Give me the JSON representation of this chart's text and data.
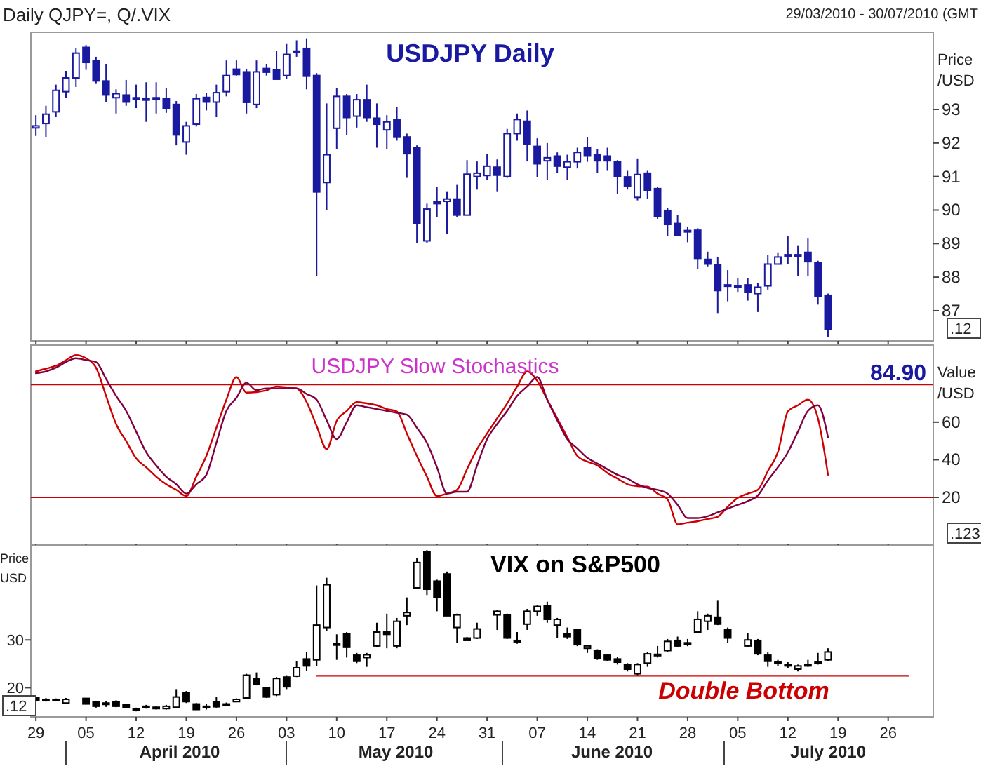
{
  "chart_data": [
    {
      "type": "candlestick",
      "title": "USDJPY Daily",
      "ylabel": "Price /USD",
      "color": "#1a1aa0",
      "tick_labels": "y",
      "annotations": [
        "Daily QJPY=, Q/.VIX",
        "29/03/2010 - 30/07/2010 (GMT",
        ".12"
      ],
      "ylim": [
        86.1,
        95.3
      ],
      "yticks": [
        87,
        88,
        89,
        90,
        91,
        92,
        93
      ],
      "categories": [
        "29",
        null,
        null,
        null,
        null,
        "05",
        null,
        null,
        null,
        null,
        "12",
        null,
        null,
        null,
        null,
        "19",
        null,
        null,
        null,
        null,
        "26",
        null,
        null,
        null,
        null,
        "03",
        null,
        null,
        null,
        null,
        "10",
        null,
        null,
        null,
        null,
        "17",
        null,
        null,
        null,
        null,
        "24",
        null,
        null,
        null,
        null,
        "31",
        null,
        null,
        null,
        null,
        "07",
        null,
        null,
        null,
        null,
        "14",
        null,
        null,
        null,
        null,
        "21",
        null,
        null,
        null,
        null,
        "28",
        null,
        null,
        null,
        null,
        "05",
        null,
        null,
        null,
        null,
        "12",
        null,
        null,
        null,
        null,
        "19",
        null,
        null,
        null,
        null,
        "26",
        null,
        null,
        null,
        null
      ],
      "ohlc": [
        [
          92.45,
          92.83,
          92.21,
          92.51
        ],
        [
          92.58,
          93.11,
          92.18,
          92.86
        ],
        [
          92.93,
          93.74,
          92.77,
          93.57
        ],
        [
          93.53,
          94.15,
          93.35,
          93.94
        ],
        [
          93.94,
          94.82,
          93.67,
          94.68
        ],
        [
          94.85,
          94.92,
          94.18,
          94.4
        ],
        [
          94.46,
          94.57,
          93.76,
          93.85
        ],
        [
          93.85,
          94.36,
          93.21,
          93.43
        ],
        [
          93.35,
          93.6,
          92.88,
          93.47
        ],
        [
          93.43,
          93.88,
          93.11,
          93.22
        ],
        [
          93.35,
          93.74,
          93.04,
          93.31
        ],
        [
          93.29,
          93.81,
          92.63,
          93.32
        ],
        [
          93.32,
          93.81,
          92.88,
          93.35
        ],
        [
          93.32,
          93.63,
          92.9,
          93.04
        ],
        [
          93.15,
          93.25,
          91.93,
          92.24
        ],
        [
          92.03,
          92.63,
          91.65,
          92.51
        ],
        [
          92.56,
          93.46,
          92.49,
          93.32
        ],
        [
          93.36,
          93.5,
          92.97,
          93.22
        ],
        [
          93.22,
          93.74,
          92.77,
          93.5
        ],
        [
          93.53,
          94.46,
          93.39,
          94.01
        ],
        [
          94.2,
          94.46,
          94.01,
          94.04
        ],
        [
          94.12,
          94.2,
          92.88,
          93.21
        ],
        [
          93.15,
          94.46,
          93.04,
          94.12
        ],
        [
          94.22,
          94.36,
          94.01,
          94.11
        ],
        [
          94.18,
          94.74,
          93.9,
          93.9
        ],
        [
          94.01,
          94.95,
          93.9,
          94.64
        ],
        [
          94.71,
          95.06,
          94.57,
          94.74
        ],
        [
          94.82,
          95.12,
          93.6,
          93.99
        ],
        [
          94.01,
          94.08,
          88.04,
          90.54
        ],
        [
          90.82,
          93.18,
          89.99,
          91.65
        ],
        [
          92.44,
          93.63,
          91.82,
          93.39
        ],
        [
          93.39,
          93.46,
          92.24,
          92.76
        ],
        [
          92.8,
          93.46,
          92.46,
          93.29
        ],
        [
          93.29,
          93.74,
          92.63,
          92.76
        ],
        [
          92.74,
          93.18,
          91.86,
          92.56
        ],
        [
          92.39,
          92.83,
          91.82,
          92.63
        ],
        [
          92.7,
          93.07,
          92.07,
          92.17
        ],
        [
          92.18,
          92.28,
          90.96,
          91.68
        ],
        [
          91.86,
          91.93,
          89.01,
          89.6
        ],
        [
          89.08,
          90.19,
          89.01,
          90.03
        ],
        [
          90.24,
          90.68,
          89.78,
          90.19
        ],
        [
          90.26,
          90.54,
          89.29,
          90.33
        ],
        [
          90.33,
          90.75,
          89.78,
          89.85
        ],
        [
          89.85,
          91.49,
          89.85,
          91.07
        ],
        [
          91.0,
          91.45,
          90.61,
          91.1
        ],
        [
          91.03,
          91.68,
          90.89,
          91.31
        ],
        [
          91.28,
          91.51,
          90.54,
          91.04
        ],
        [
          91.0,
          92.42,
          90.96,
          92.28
        ],
        [
          92.28,
          92.88,
          92.07,
          92.7
        ],
        [
          92.65,
          92.97,
          91.45,
          91.96
        ],
        [
          91.9,
          92.14,
          90.99,
          91.38
        ],
        [
          91.47,
          92.0,
          90.89,
          91.56
        ],
        [
          91.61,
          91.72,
          91.1,
          91.31
        ],
        [
          91.28,
          91.65,
          90.89,
          91.44
        ],
        [
          91.44,
          91.86,
          91.24,
          91.72
        ],
        [
          91.86,
          92.17,
          91.44,
          91.61
        ],
        [
          91.65,
          91.82,
          91.1,
          91.47
        ],
        [
          91.61,
          91.86,
          91.17,
          91.47
        ],
        [
          91.44,
          91.49,
          90.47,
          91.0
        ],
        [
          90.99,
          91.17,
          90.61,
          90.72
        ],
        [
          90.38,
          91.54,
          90.29,
          91.06
        ],
        [
          91.1,
          91.17,
          90.33,
          90.58
        ],
        [
          90.64,
          90.68,
          89.74,
          89.81
        ],
        [
          89.99,
          90.06,
          89.22,
          89.57
        ],
        [
          89.6,
          89.85,
          89.22,
          89.25
        ],
        [
          89.39,
          89.5,
          89.04,
          89.36
        ],
        [
          89.4,
          89.46,
          88.25,
          88.56
        ],
        [
          88.53,
          88.76,
          88.32,
          88.39
        ],
        [
          88.36,
          88.6,
          86.93,
          87.6
        ],
        [
          87.77,
          88.21,
          87.28,
          87.77
        ],
        [
          87.74,
          87.97,
          87.56,
          87.7
        ],
        [
          87.77,
          87.97,
          87.3,
          87.56
        ],
        [
          87.51,
          87.83,
          86.96,
          87.7
        ],
        [
          87.74,
          88.67,
          87.63,
          88.39
        ],
        [
          88.39,
          88.74,
          88.39,
          88.6
        ],
        [
          88.67,
          89.22,
          88.39,
          88.67
        ],
        [
          88.67,
          88.95,
          88.04,
          88.64
        ],
        [
          88.74,
          89.15,
          88.04,
          88.46
        ],
        [
          88.43,
          88.49,
          87.18,
          87.42
        ],
        [
          87.46,
          87.51,
          86.21,
          86.45
        ],
        null,
        null,
        null,
        null,
        null,
        null,
        null,
        null,
        null,
        null
      ]
    },
    {
      "type": "line",
      "title": "USDJPY Slow Stochastics",
      "ylabel": "Value /USD",
      "tick_labels": "y",
      "annotations": [
        "84.90",
        ".123"
      ],
      "ylim": [
        -5,
        101
      ],
      "yticks": [
        20,
        40,
        60
      ],
      "categories": [
        "29",
        null,
        null,
        null,
        null,
        "05",
        null,
        null,
        null,
        null,
        "12",
        null,
        null,
        null,
        null,
        "19",
        null,
        null,
        null,
        null,
        "26",
        null,
        null,
        null,
        null,
        "03",
        null,
        null,
        null,
        null,
        "10",
        null,
        null,
        null,
        null,
        "17",
        null,
        null,
        null,
        null,
        "24",
        null,
        null,
        null,
        null,
        "31",
        null,
        null,
        null,
        null,
        "07",
        null,
        null,
        null,
        null,
        "14",
        null,
        null,
        null,
        null,
        "21",
        null,
        null,
        null,
        null,
        "28",
        null,
        null,
        null,
        null,
        "05",
        null,
        null,
        null,
        null,
        "12",
        null,
        null,
        null,
        null,
        "19",
        null,
        null,
        null,
        null,
        "26",
        null,
        null,
        null,
        null
      ],
      "ref_lines": [
        {
          "axis": "y",
          "value": 80,
          "color": "#cc0000"
        },
        {
          "axis": "y",
          "value": 20,
          "color": "#cc0000"
        }
      ],
      "series": [
        {
          "color": "#cc0000",
          "values": [
            87,
            88.5,
            90,
            93,
            95.7,
            94,
            89,
            74,
            59,
            50,
            40.7,
            36,
            31,
            27,
            24,
            20.7,
            31,
            42,
            57,
            72,
            84,
            75.7,
            76,
            77,
            79,
            78.5,
            78,
            70.7,
            58,
            45.7,
            60.7,
            66,
            70.7,
            70,
            69,
            67,
            65.7,
            54,
            42,
            31,
            20.7,
            22,
            24,
            35,
            45.7,
            54,
            62,
            70,
            79,
            87,
            82,
            72,
            62,
            52,
            42,
            39,
            37,
            33,
            30,
            27,
            26,
            25.7,
            22,
            19,
            5.7,
            6.5,
            7.3,
            8.5,
            9.7,
            15,
            19.7,
            22,
            24,
            34,
            44,
            65.7,
            69,
            72,
            62,
            32,
            null,
            null,
            null,
            null,
            null,
            null,
            null,
            null,
            null,
            null
          ]
        },
        {
          "color": "#800040",
          "values": [
            86,
            87,
            89,
            92,
            94,
            93,
            92,
            83,
            74,
            66,
            55,
            44,
            37,
            31,
            27,
            22,
            27,
            32,
            49,
            66,
            73,
            81,
            77,
            78,
            78,
            78,
            78,
            75,
            72,
            61,
            51,
            60,
            69,
            68,
            67,
            66,
            65,
            64,
            57,
            49,
            36,
            22,
            23,
            23,
            37,
            51,
            59,
            66,
            74,
            79,
            84,
            72,
            61,
            51,
            46,
            41,
            38,
            35,
            32,
            30,
            27,
            25,
            24,
            22,
            16,
            9,
            9,
            10,
            12,
            14,
            16,
            18,
            21,
            29,
            36,
            44,
            55,
            66,
            69,
            52,
            null,
            null,
            null,
            null,
            null,
            null,
            null,
            null,
            null,
            null
          ]
        }
      ]
    },
    {
      "type": "candlestick",
      "title": "VIX on S&P500",
      "ylabel": "Price USD",
      "color": "#000000",
      "annotations": [
        ".12",
        "April 2010",
        "May 2010",
        "June 2010",
        "July 2010",
        "Double Bottom"
      ],
      "ylim": [
        13.9,
        49.7
      ],
      "yticks": [
        20,
        30
      ],
      "categories": [
        "29",
        null,
        null,
        null,
        null,
        "05",
        null,
        null,
        null,
        null,
        "12",
        null,
        null,
        null,
        null,
        "19",
        null,
        null,
        null,
        null,
        "26",
        null,
        null,
        null,
        null,
        "03",
        null,
        null,
        null,
        null,
        "10",
        null,
        null,
        null,
        null,
        "17",
        null,
        null,
        null,
        null,
        "24",
        null,
        null,
        null,
        null,
        "31",
        null,
        null,
        null,
        null,
        "07",
        null,
        null,
        null,
        null,
        "14",
        null,
        null,
        null,
        null,
        "21",
        null,
        null,
        null,
        null,
        "28",
        null,
        null,
        null,
        null,
        "05",
        null,
        null,
        null,
        null,
        "12",
        null,
        null,
        null,
        null,
        "19",
        null,
        null,
        null,
        null,
        "26",
        null,
        null,
        null,
        null
      ],
      "series": [
        {
          "type": "line",
          "color": "#cc0000",
          "values": [
            null,
            null,
            null,
            null,
            null,
            null,
            null,
            null,
            null,
            null,
            null,
            null,
            null,
            null,
            null,
            null,
            null,
            null,
            null,
            null,
            null,
            null,
            null,
            null,
            null,
            null,
            null,
            null,
            22.5,
            22.5,
            22.5,
            22.5,
            22.5,
            22.5,
            22.5,
            22.5,
            22.5,
            22.5,
            22.5,
            22.5,
            22.5,
            22.5,
            22.5,
            22.5,
            22.5,
            22.5,
            22.5,
            22.5,
            22.5,
            22.5,
            22.5,
            22.5,
            22.5,
            22.5,
            22.5,
            22.5,
            22.5,
            22.5,
            22.5,
            22.5,
            22.5,
            22.5,
            22.5,
            22.5,
            22.5,
            22.5,
            22.5,
            22.5,
            22.5,
            22.5,
            22.5,
            22.5,
            22.5,
            22.5,
            22.5,
            22.5,
            22.5,
            22.5,
            22.5,
            22.5,
            22.5,
            22.5,
            22.5,
            22.5,
            22.5,
            22.5,
            22.5,
            22.5,
            null,
            null
          ]
        }
      ],
      "ohlc": [
        [
          17.86,
          18.06,
          17.09,
          17.28
        ],
        [
          17.57,
          17.86,
          17.09,
          17.38
        ],
        [
          17.57,
          17.76,
          17.2,
          17.38
        ],
        [
          16.8,
          17.86,
          16.7,
          17.57
        ],
        null,
        [
          17.77,
          17.86,
          16.6,
          16.6
        ],
        [
          17.09,
          17.28,
          15.83,
          16.12
        ],
        [
          16.8,
          17.28,
          15.98,
          16.6
        ],
        [
          17.09,
          17.38,
          15.92,
          16.12
        ],
        [
          16.41,
          16.6,
          15.73,
          15.83
        ],
        [
          15.63,
          15.83,
          15.05,
          15.24
        ],
        [
          16.12,
          16.41,
          15.63,
          16.02
        ],
        [
          15.92,
          16.12,
          15.44,
          15.63
        ],
        [
          15.63,
          16.41,
          15.44,
          16.12
        ],
        [
          15.92,
          19.71,
          15.83,
          18.06
        ],
        [
          19.03,
          19.32,
          16.8,
          17.09
        ],
        [
          16.6,
          16.8,
          15.34,
          15.44
        ],
        [
          16.12,
          16.6,
          15.44,
          16.12
        ],
        [
          17.09,
          18.06,
          15.83,
          16.02
        ],
        [
          16.6,
          16.9,
          16.12,
          16.6
        ],
        [
          17.09,
          17.77,
          17.09,
          17.57
        ],
        [
          17.86,
          22.91,
          17.77,
          22.62
        ],
        [
          21.94,
          23.2,
          20.49,
          20.78
        ],
        [
          20.0,
          20.19,
          17.86,
          18.06
        ],
        [
          18.54,
          22.23,
          18.25,
          21.94
        ],
        [
          22.23,
          22.62,
          19.71,
          20.19
        ],
        [
          22.43,
          25.53,
          22.23,
          24.17
        ],
        [
          26.02,
          27.48,
          23.59,
          24.56
        ],
        [
          25.83,
          41.4,
          24.56,
          33.1
        ],
        [
          32.6,
          43.0,
          31.94,
          41.55
        ],
        [
          29.2,
          31.17,
          25.83,
          29.2
        ],
        [
          31.36,
          31.65,
          26.31,
          28.45
        ],
        [
          26.8,
          27.28,
          25.15,
          25.53
        ],
        [
          26.31,
          27.28,
          24.37,
          26.89
        ],
        [
          28.74,
          33.6,
          28.45,
          31.65
        ],
        [
          31.65,
          35.5,
          28.25,
          31.17
        ],
        [
          28.74,
          34.6,
          28.25,
          33.9
        ],
        [
          35.05,
          38.9,
          33.1,
          35.73
        ],
        [
          40.9,
          47.2,
          40.9,
          46.2
        ],
        [
          48.45,
          48.8,
          39.4,
          40.6
        ],
        [
          42.3,
          42.6,
          36.0,
          38.9
        ],
        [
          43.8,
          44.3,
          35.05,
          35.05
        ],
        [
          32.6,
          35.5,
          29.4,
          35.24
        ],
        [
          30.4,
          30.6,
          29.9,
          29.9
        ],
        [
          30.4,
          33.6,
          30.2,
          32.3
        ],
        null,
        [
          35.24,
          36.2,
          32.1,
          36.0
        ],
        [
          35.24,
          35.5,
          30.2,
          30.4
        ],
        [
          29.9,
          31.65,
          29.2,
          29.7
        ],
        [
          33.3,
          36.5,
          32.1,
          36.0
        ],
        [
          36.0,
          37.2,
          35.05,
          37.0
        ],
        [
          37.2,
          38.0,
          33.6,
          34.3
        ],
        [
          33.1,
          34.6,
          30.4,
          34.3
        ],
        [
          31.36,
          32.6,
          30.2,
          30.68
        ],
        [
          32.1,
          32.3,
          28.7,
          29.0
        ],
        [
          28.25,
          29.0,
          27.28,
          28.74
        ],
        [
          27.77,
          28.05,
          25.83,
          26.12
        ],
        [
          26.8,
          26.99,
          25.63,
          25.83
        ],
        [
          26.02,
          26.5,
          24.85,
          25.34
        ],
        [
          24.85,
          25.15,
          23.4,
          23.88
        ],
        [
          22.91,
          25.15,
          22.62,
          24.85
        ],
        [
          25.15,
          27.48,
          24.37,
          27.09
        ],
        [
          26.99,
          28.74,
          26.31,
          26.99
        ],
        [
          27.77,
          30.2,
          27.48,
          29.7
        ],
        [
          29.9,
          30.7,
          28.45,
          28.74
        ],
        [
          29.4,
          30.2,
          28.7,
          29.4
        ],
        [
          31.65,
          36.0,
          31.36,
          34.3
        ],
        [
          33.9,
          35.5,
          32.1,
          35.05
        ],
        [
          34.76,
          38.2,
          33.1,
          33.3
        ],
        [
          32.1,
          32.6,
          29.4,
          30.4
        ],
        null,
        [
          28.74,
          31.36,
          28.45,
          30.0
        ],
        [
          29.9,
          30.2,
          26.8,
          27.09
        ],
        [
          26.8,
          27.48,
          24.37,
          25.53
        ],
        [
          25.34,
          25.83,
          24.56,
          25.15
        ],
        [
          24.85,
          25.34,
          24.17,
          24.66
        ],
        [
          23.88,
          24.85,
          23.4,
          24.56
        ],
        [
          24.66,
          25.83,
          24.37,
          24.85
        ],
        [
          25.15,
          27.28,
          24.85,
          25.34
        ],
        [
          25.83,
          28.25,
          25.53,
          27.48
        ],
        null,
        null,
        null,
        null,
        null,
        null,
        null,
        null,
        null,
        null
      ]
    }
  ]
}
